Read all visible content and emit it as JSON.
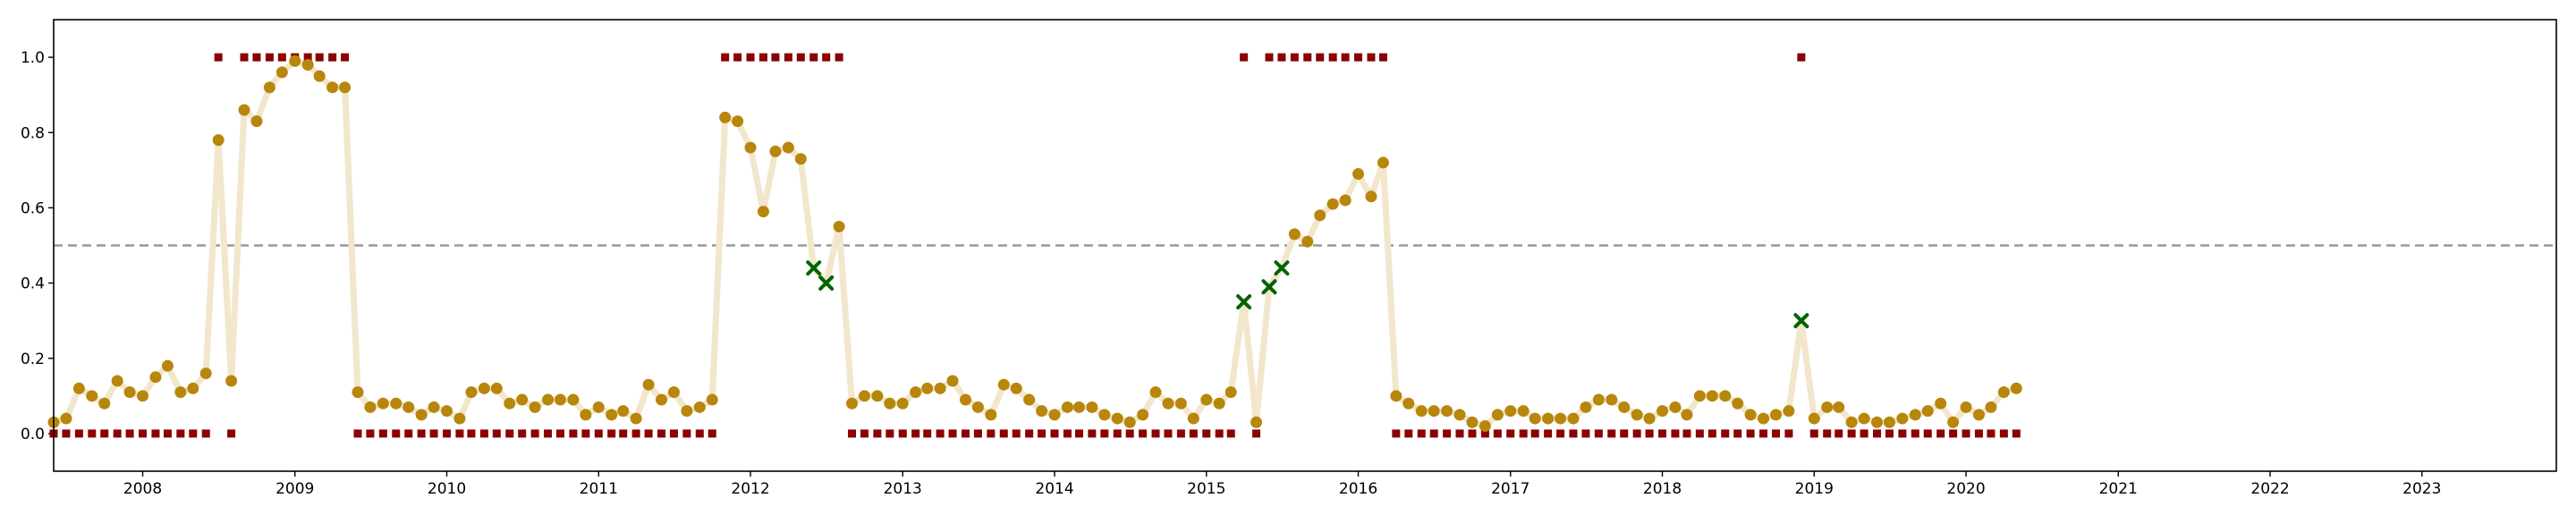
{
  "chart_data": {
    "type": "scatter",
    "title": "",
    "xlabel": "",
    "ylabel": "",
    "xlim": [
      "2007-06-01",
      "2023-11-20"
    ],
    "ylim": [
      -0.1,
      1.1
    ],
    "grid": false,
    "legend": "none",
    "x_ticks": [
      "2008",
      "2009",
      "2010",
      "2011",
      "2012",
      "2013",
      "2014",
      "2015",
      "2016",
      "2017",
      "2018",
      "2019",
      "2020",
      "2021",
      "2022",
      "2023"
    ],
    "y_ticks": [
      "0.0",
      "0.2",
      "0.4",
      "0.6",
      "0.8",
      "1.0"
    ],
    "threshold": 0.5,
    "start": "2007-06",
    "probability": [
      0.03,
      0.04,
      0.12,
      0.1,
      0.08,
      0.14,
      0.11,
      0.1,
      0.15,
      0.18,
      0.11,
      0.12,
      0.16,
      0.78,
      0.14,
      0.86,
      0.83,
      0.92,
      0.96,
      0.99,
      0.98,
      0.95,
      0.92,
      0.92,
      0.11,
      0.07,
      0.08,
      0.08,
      0.07,
      0.05,
      0.07,
      0.06,
      0.04,
      0.11,
      0.12,
      0.12,
      0.08,
      0.09,
      0.07,
      0.09,
      0.09,
      0.09,
      0.05,
      0.07,
      0.05,
      0.06,
      0.04,
      0.13,
      0.09,
      0.11,
      0.06,
      0.07,
      0.09,
      0.84,
      0.83,
      0.76,
      0.59,
      0.75,
      0.76,
      0.73,
      0.44,
      0.4,
      0.55,
      0.08,
      0.1,
      0.1,
      0.08,
      0.08,
      0.11,
      0.12,
      0.12,
      0.14,
      0.09,
      0.07,
      0.05,
      0.13,
      0.12,
      0.09,
      0.06,
      0.05,
      0.07,
      0.07,
      0.07,
      0.05,
      0.04,
      0.03,
      0.05,
      0.11,
      0.08,
      0.08,
      0.04,
      0.09,
      0.08,
      0.11,
      0.35,
      0.03,
      0.39,
      0.44,
      0.53,
      0.51,
      0.58,
      0.61,
      0.62,
      0.69,
      0.63,
      0.72,
      0.1,
      0.08,
      0.06,
      0.06,
      0.06,
      0.05,
      0.03,
      0.02,
      0.05,
      0.06,
      0.06,
      0.04,
      0.04,
      0.04,
      0.04,
      0.07,
      0.09,
      0.09,
      0.07,
      0.05,
      0.04,
      0.06,
      0.07,
      0.05,
      0.1,
      0.1,
      0.1,
      0.08,
      0.05,
      0.04,
      0.05,
      0.06,
      0.3,
      0.04,
      0.07,
      0.07,
      0.03,
      0.04,
      0.03,
      0.03,
      0.04,
      0.05,
      0.06,
      0.08,
      0.03,
      0.07,
      0.05,
      0.07,
      0.11,
      0.12
    ],
    "regime": [
      0,
      0,
      0,
      0,
      0,
      0,
      0,
      0,
      0,
      0,
      0,
      0,
      0,
      1,
      0,
      1,
      1,
      1,
      1,
      1,
      1,
      1,
      1,
      1,
      0,
      0,
      0,
      0,
      0,
      0,
      0,
      0,
      0,
      0,
      0,
      0,
      0,
      0,
      0,
      0,
      0,
      0,
      0,
      0,
      0,
      0,
      0,
      0,
      0,
      0,
      0,
      0,
      0,
      1,
      1,
      1,
      1,
      1,
      1,
      1,
      1,
      1,
      1,
      0,
      0,
      0,
      0,
      0,
      0,
      0,
      0,
      0,
      0,
      0,
      0,
      0,
      0,
      0,
      0,
      0,
      0,
      0,
      0,
      0,
      0,
      0,
      0,
      0,
      0,
      0,
      0,
      0,
      0,
      0,
      1,
      0,
      1,
      1,
      1,
      1,
      1,
      1,
      1,
      1,
      1,
      1,
      0,
      0,
      0,
      0,
      0,
      0,
      0,
      0,
      0,
      0,
      0,
      0,
      0,
      0,
      0,
      0,
      0,
      0,
      0,
      0,
      0,
      0,
      0,
      0,
      0,
      0,
      0,
      0,
      0,
      0,
      0,
      0,
      1,
      0,
      0,
      0,
      0,
      0,
      0,
      0,
      0,
      0,
      0,
      0,
      0,
      0,
      0,
      0,
      0,
      0
    ],
    "colors": {
      "probability_line": "#f2e6cc",
      "probability_point": "#b8860b",
      "regime_marker": "#8b0000",
      "mismatch_marker": "#006400",
      "threshold_line": "#999999",
      "axis": "#000000"
    }
  }
}
